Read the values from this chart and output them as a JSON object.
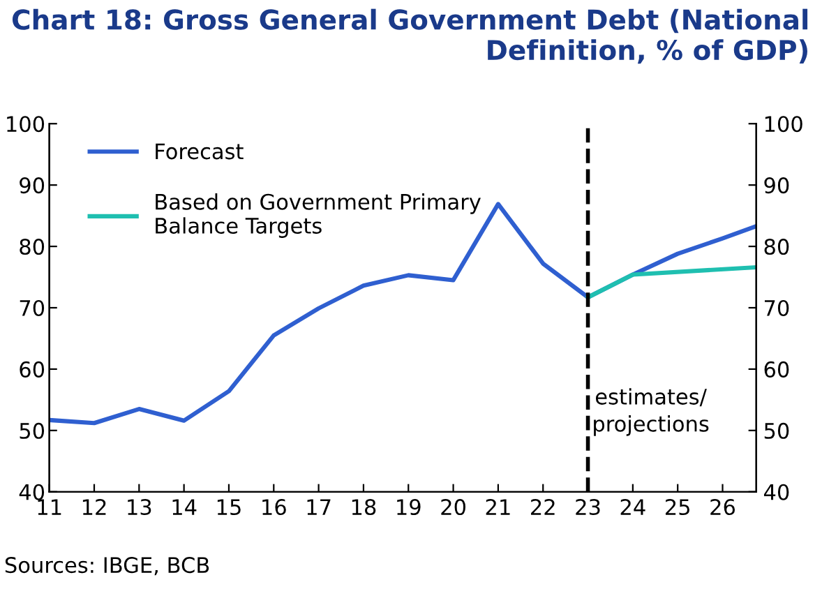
{
  "chart_data": {
    "type": "line",
    "title": "Chart 18: Gross General Government Debt (National\nDefinition, % of GDP)",
    "x": [
      11,
      12,
      13,
      14,
      15,
      16,
      17,
      18,
      19,
      20,
      21,
      22,
      23,
      24,
      25,
      26,
      26.75
    ],
    "series": [
      {
        "name": "Forecast",
        "color": "#2f5fd0",
        "values": [
          51.7,
          51.2,
          53.5,
          51.6,
          56.4,
          65.5,
          69.9,
          73.6,
          75.3,
          74.5,
          86.9,
          77.2,
          71.7,
          75.4,
          78.8,
          81.3,
          83.3
        ]
      },
      {
        "name": "Based on Government Primary\nBalance Targets",
        "color": "#1fbfb0",
        "x": [
          23,
          24,
          26.75
        ],
        "values": [
          71.7,
          75.4,
          76.6
        ]
      }
    ],
    "xlim": [
      11,
      26.75
    ],
    "xticks": [
      11,
      12,
      13,
      14,
      15,
      16,
      17,
      18,
      19,
      20,
      21,
      22,
      23,
      24,
      25,
      26
    ],
    "ylim": [
      40,
      100
    ],
    "yticks": [
      40,
      50,
      60,
      70,
      80,
      90,
      100
    ],
    "y2lim": [
      40,
      100
    ],
    "y2ticks": [
      40,
      50,
      60,
      70,
      80,
      90,
      100
    ],
    "ref_lines": [
      {
        "axis": "x",
        "value": 23,
        "label": "estimates/\nprojections",
        "color": "#000000",
        "line_style": "dashed"
      }
    ],
    "annotations": [
      "Sources: IBGE, BCB"
    ],
    "grid": false,
    "legend": "top left",
    "marker": "none",
    "line_style": "solid"
  }
}
